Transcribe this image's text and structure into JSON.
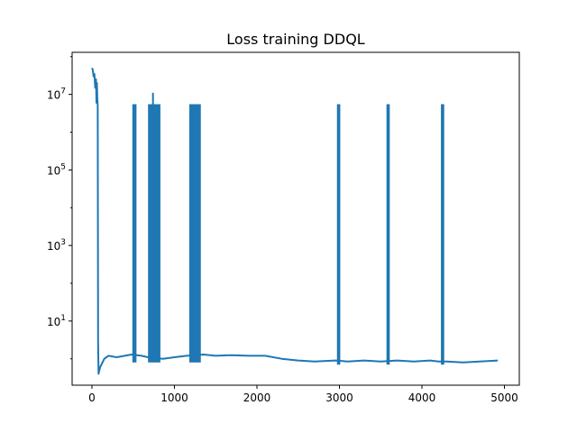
{
  "chart_data": {
    "type": "line",
    "title": "Loss training DDQL",
    "xlabel": "",
    "ylabel": "",
    "yscale": "log",
    "xlim": [
      -240,
      5180
    ],
    "ylim": [
      0.2,
      130000000
    ],
    "xticks": [
      0,
      1000,
      2000,
      3000,
      4000,
      5000
    ],
    "xtick_labels": [
      "0",
      "1000",
      "2000",
      "3000",
      "4000",
      "5000"
    ],
    "yticks": [
      10,
      1000,
      100000,
      10000000
    ],
    "ytick_labels": [
      {
        "base": "10",
        "exp": "1"
      },
      {
        "base": "10",
        "exp": "3"
      },
      {
        "base": "10",
        "exp": "5"
      },
      {
        "base": "10",
        "exp": "7"
      }
    ],
    "grid": false,
    "series": [
      {
        "color": "#1f77b4",
        "points": [
          [
            0,
            50000000
          ],
          [
            10,
            45000000
          ],
          [
            20,
            30000000
          ],
          [
            30,
            35000000
          ],
          [
            40,
            15000000
          ],
          [
            50,
            25000000
          ],
          [
            55,
            6000000
          ],
          [
            60,
            20000000
          ],
          [
            65,
            8000000
          ],
          [
            70,
            5000000
          ],
          [
            75,
            3.0
          ],
          [
            80,
            0.4
          ],
          [
            100,
            0.6
          ],
          [
            150,
            1.0
          ],
          [
            200,
            1.2
          ],
          [
            300,
            1.1
          ],
          [
            400,
            1.2
          ],
          [
            480,
            1.3
          ],
          [
            600,
            1.2
          ],
          [
            680,
            1.1
          ],
          [
            860,
            1.0
          ],
          [
            1000,
            1.1
          ],
          [
            1150,
            1.2
          ],
          [
            1350,
            1.3
          ],
          [
            1500,
            1.2
          ],
          [
            1700,
            1.25
          ],
          [
            1900,
            1.2
          ],
          [
            2100,
            1.2
          ],
          [
            2300,
            1.0
          ],
          [
            2500,
            0.9
          ],
          [
            2700,
            0.85
          ],
          [
            2950,
            0.9
          ],
          [
            3100,
            0.85
          ],
          [
            3300,
            0.9
          ],
          [
            3500,
            0.85
          ],
          [
            3700,
            0.9
          ],
          [
            3900,
            0.85
          ],
          [
            4100,
            0.9
          ],
          [
            4200,
            0.85
          ],
          [
            4300,
            0.85
          ],
          [
            4500,
            0.8
          ],
          [
            4700,
            0.85
          ],
          [
            4920,
            0.9
          ]
        ],
        "spike_bands": [
          {
            "x0": 490,
            "x1": 540,
            "ymin": 0.8,
            "ymax": 5500000
          },
          {
            "x0": 680,
            "x1": 830,
            "ymin": 0.8,
            "ymax": 5500000
          },
          {
            "x0": 1180,
            "x1": 1320,
            "ymin": 0.8,
            "ymax": 5500000
          },
          {
            "x0": 2970,
            "x1": 3010,
            "ymin": 0.7,
            "ymax": 5500000
          },
          {
            "x0": 3570,
            "x1": 3610,
            "ymin": 0.7,
            "ymax": 5500000
          },
          {
            "x0": 4230,
            "x1": 4270,
            "ymin": 0.7,
            "ymax": 5500000
          }
        ],
        "spike_peaks": [
          {
            "x": 740,
            "y": 11000000
          }
        ]
      }
    ]
  }
}
